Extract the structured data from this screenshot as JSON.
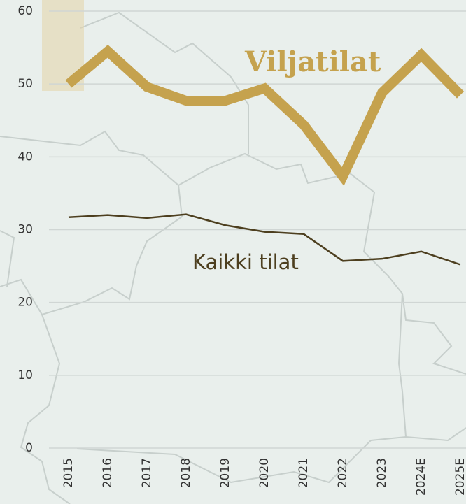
{
  "chart_data": {
    "type": "line",
    "categories": [
      "2015",
      "2016",
      "2017",
      "2018",
      "2019",
      "2020",
      "2021",
      "2022",
      "2023",
      "2024E",
      "2025E"
    ],
    "series": [
      {
        "name": "Viljatilat",
        "color": "#c5a24e",
        "values": [
          50,
          54.5,
          49.6,
          47.7,
          47.7,
          49.4,
          44.4,
          37.3,
          48.8,
          54,
          48.5
        ]
      },
      {
        "name": "Kaikki tilat",
        "color": "#4d3f1f",
        "values": [
          31.7,
          32,
          31.6,
          32.1,
          30.6,
          29.7,
          29.4,
          25.7,
          26,
          27,
          25.2
        ]
      }
    ],
    "ylim": [
      0,
      60
    ],
    "yticks": [
      0,
      10,
      20,
      30,
      40,
      50,
      60
    ],
    "grid": true
  }
}
